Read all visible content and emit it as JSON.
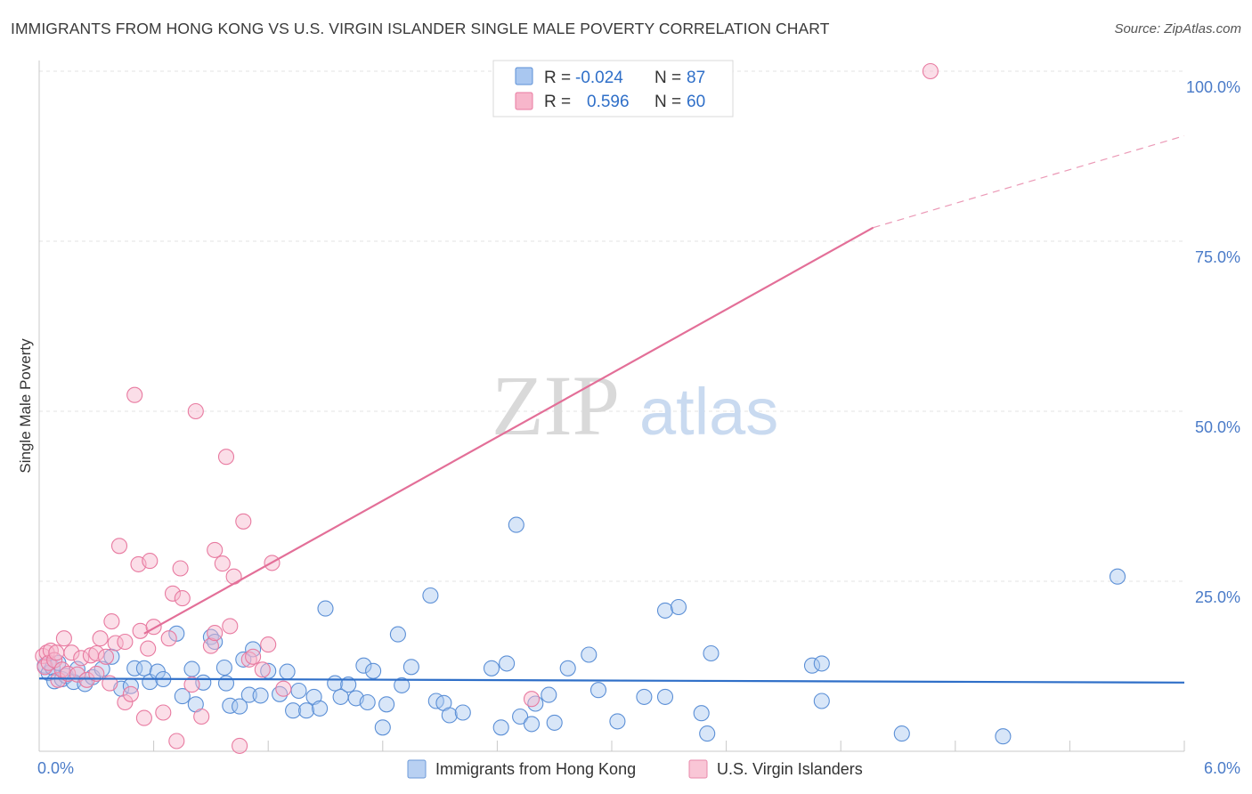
{
  "header": {
    "title": "IMMIGRANTS FROM HONG KONG VS U.S. VIRGIN ISLANDER SINGLE MALE POVERTY CORRELATION CHART",
    "source": "Source: ZipAtlas.com"
  },
  "watermark": {
    "zip": "ZIP",
    "atlas": "atlas"
  },
  "legend": {
    "rows": [
      {
        "r_label": "R =",
        "r_value": "-0.024",
        "n_label": "N =",
        "n_value": "87",
        "color": "#a9c7f0",
        "stroke": "#5b8fd6"
      },
      {
        "r_label": "R =",
        "r_value": "0.596",
        "n_label": "N =",
        "n_value": "60",
        "color": "#f7b6cb",
        "stroke": "#e87aa0"
      }
    ]
  },
  "bottom_legend": [
    {
      "label": "Immigrants from Hong Kong",
      "color": "#b8d0f2",
      "stroke": "#6d9ad8"
    },
    {
      "label": "U.S. Virgin Islanders",
      "color": "#f9c6d6",
      "stroke": "#e88aab"
    }
  ],
  "chart_data": {
    "type": "scatter",
    "title": "IMMIGRANTS FROM HONG KONG VS U.S. VIRGIN ISLANDER SINGLE MALE POVERTY CORRELATION CHART",
    "xlabel": "",
    "ylabel": "Single Male Poverty",
    "xlim": [
      0,
      6
    ],
    "ylim": [
      0,
      100
    ],
    "x_tick_labels": [
      "0.0%",
      "6.0%"
    ],
    "y_ticks": [
      25,
      50,
      75,
      100
    ],
    "y_tick_labels": [
      "25.0%",
      "50.0%",
      "75.0%",
      "100.0%"
    ],
    "colors": {
      "blue": "#5b8fd6",
      "pink": "#e87aa0",
      "blue_line": "#2f6fc8",
      "pink_line": "#e36f98"
    },
    "series": [
      {
        "name": "Immigrants from Hong Kong",
        "color": "blue",
        "trend": {
          "x0": 0,
          "y0": 10.7,
          "x1": 6,
          "y1": 10.1,
          "x_dash_end": 6
        },
        "points": [
          [
            0.03,
            12.6
          ],
          [
            0.05,
            11.5
          ],
          [
            0.07,
            12.3
          ],
          [
            0.08,
            10.3
          ],
          [
            0.1,
            13.0
          ],
          [
            0.12,
            10.6
          ],
          [
            0.14,
            11.1
          ],
          [
            0.18,
            10.2
          ],
          [
            0.2,
            12.1
          ],
          [
            0.24,
            9.9
          ],
          [
            0.28,
            10.9
          ],
          [
            0.33,
            12.1
          ],
          [
            0.38,
            13.9
          ],
          [
            0.43,
            9.2
          ],
          [
            0.48,
            9.6
          ],
          [
            0.5,
            12.2
          ],
          [
            0.55,
            12.2
          ],
          [
            0.58,
            10.2
          ],
          [
            0.62,
            11.7
          ],
          [
            0.65,
            10.6
          ],
          [
            0.72,
            17.3
          ],
          [
            0.75,
            8.1
          ],
          [
            0.8,
            12.1
          ],
          [
            0.82,
            6.9
          ],
          [
            0.86,
            10.1
          ],
          [
            0.9,
            16.8
          ],
          [
            0.92,
            16.1
          ],
          [
            0.97,
            12.3
          ],
          [
            1.0,
            6.7
          ],
          [
            1.05,
            6.6
          ],
          [
            1.07,
            13.5
          ],
          [
            1.1,
            8.3
          ],
          [
            1.12,
            15.0
          ],
          [
            1.16,
            8.2
          ],
          [
            1.2,
            11.8
          ],
          [
            1.26,
            8.4
          ],
          [
            1.3,
            11.7
          ],
          [
            1.33,
            6.0
          ],
          [
            1.36,
            8.9
          ],
          [
            1.4,
            6.0
          ],
          [
            1.44,
            8.0
          ],
          [
            1.47,
            6.3
          ],
          [
            1.5,
            21.0
          ],
          [
            1.55,
            10.0
          ],
          [
            1.58,
            8.0
          ],
          [
            1.62,
            9.8
          ],
          [
            1.66,
            7.8
          ],
          [
            1.7,
            12.6
          ],
          [
            1.72,
            7.2
          ],
          [
            1.75,
            11.8
          ],
          [
            1.8,
            3.5
          ],
          [
            1.82,
            6.9
          ],
          [
            1.88,
            17.2
          ],
          [
            1.9,
            9.7
          ],
          [
            1.95,
            12.4
          ],
          [
            2.05,
            22.9
          ],
          [
            2.08,
            7.4
          ],
          [
            2.12,
            7.1
          ],
          [
            2.15,
            5.3
          ],
          [
            2.22,
            5.7
          ],
          [
            2.37,
            12.2
          ],
          [
            2.42,
            3.5
          ],
          [
            2.45,
            12.9
          ],
          [
            2.5,
            33.3
          ],
          [
            2.52,
            5.1
          ],
          [
            2.58,
            4.0
          ],
          [
            2.6,
            7.0
          ],
          [
            2.67,
            8.3
          ],
          [
            2.7,
            4.2
          ],
          [
            2.77,
            12.2
          ],
          [
            2.88,
            14.2
          ],
          [
            2.93,
            9.0
          ],
          [
            3.03,
            4.4
          ],
          [
            3.17,
            8.0
          ],
          [
            3.28,
            8.0
          ],
          [
            3.28,
            20.7
          ],
          [
            3.35,
            21.2
          ],
          [
            3.47,
            5.6
          ],
          [
            3.5,
            2.6
          ],
          [
            3.52,
            14.4
          ],
          [
            4.05,
            12.6
          ],
          [
            4.1,
            12.9
          ],
          [
            4.1,
            7.4
          ],
          [
            4.52,
            2.6
          ],
          [
            5.05,
            2.2
          ],
          [
            5.65,
            25.7
          ],
          [
            0.98,
            10.0
          ]
        ]
      },
      {
        "name": "U.S. Virgin Islanders",
        "color": "pink",
        "trend": {
          "x0": 0.55,
          "y0": 17.3,
          "x1": 4.37,
          "y1": 77.0,
          "x_dash_end": 6,
          "y_dash_end": 90.5
        },
        "points": [
          [
            0.02,
            14.0
          ],
          [
            0.03,
            12.4
          ],
          [
            0.04,
            14.5
          ],
          [
            0.05,
            13.0
          ],
          [
            0.06,
            14.8
          ],
          [
            0.08,
            13.4
          ],
          [
            0.09,
            14.5
          ],
          [
            0.1,
            10.5
          ],
          [
            0.12,
            12.0
          ],
          [
            0.13,
            16.6
          ],
          [
            0.15,
            11.4
          ],
          [
            0.17,
            14.5
          ],
          [
            0.2,
            11.3
          ],
          [
            0.22,
            13.7
          ],
          [
            0.25,
            10.5
          ],
          [
            0.27,
            14.1
          ],
          [
            0.3,
            14.4
          ],
          [
            0.3,
            11.4
          ],
          [
            0.32,
            16.6
          ],
          [
            0.35,
            13.9
          ],
          [
            0.37,
            10.0
          ],
          [
            0.38,
            19.1
          ],
          [
            0.4,
            15.9
          ],
          [
            0.42,
            30.2
          ],
          [
            0.45,
            16.1
          ],
          [
            0.45,
            7.2
          ],
          [
            0.48,
            8.4
          ],
          [
            0.5,
            52.4
          ],
          [
            0.52,
            27.5
          ],
          [
            0.53,
            17.7
          ],
          [
            0.55,
            4.9
          ],
          [
            0.57,
            15.1
          ],
          [
            0.58,
            28.0
          ],
          [
            0.6,
            18.3
          ],
          [
            0.65,
            5.7
          ],
          [
            0.68,
            16.6
          ],
          [
            0.7,
            23.2
          ],
          [
            0.72,
            1.5
          ],
          [
            0.74,
            26.9
          ],
          [
            0.75,
            22.5
          ],
          [
            0.8,
            9.8
          ],
          [
            0.82,
            50.0
          ],
          [
            0.85,
            5.1
          ],
          [
            0.9,
            15.5
          ],
          [
            0.92,
            17.4
          ],
          [
            0.92,
            29.6
          ],
          [
            0.96,
            27.6
          ],
          [
            0.98,
            43.3
          ],
          [
            1.0,
            18.4
          ],
          [
            1.02,
            25.7
          ],
          [
            1.05,
            0.8
          ],
          [
            1.07,
            33.8
          ],
          [
            1.1,
            13.5
          ],
          [
            1.12,
            13.9
          ],
          [
            1.17,
            12.0
          ],
          [
            1.2,
            15.7
          ],
          [
            1.22,
            27.7
          ],
          [
            1.28,
            9.2
          ],
          [
            2.58,
            7.7
          ],
          [
            4.67,
            100.0
          ]
        ]
      }
    ]
  }
}
